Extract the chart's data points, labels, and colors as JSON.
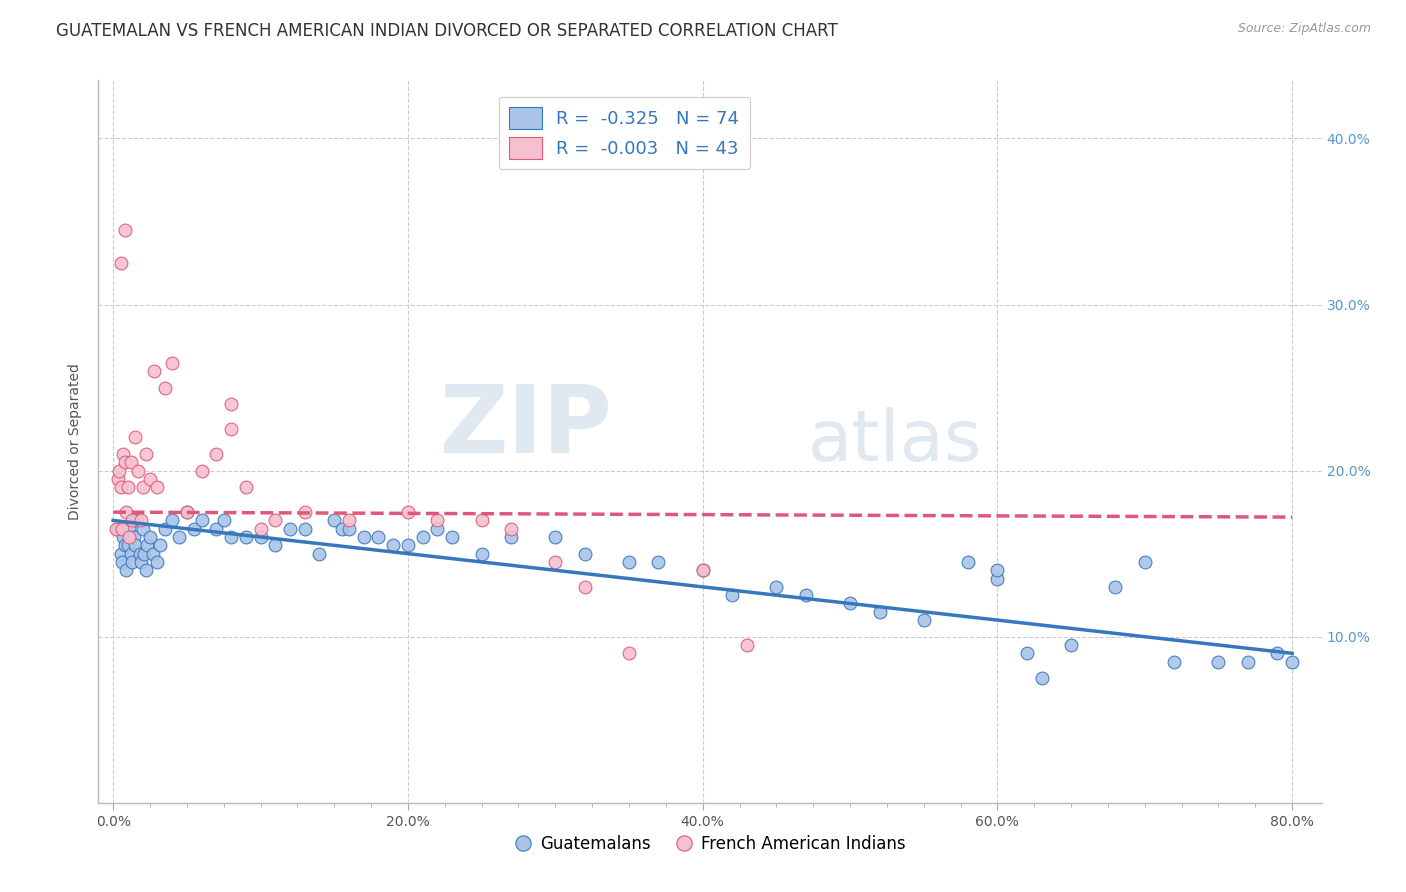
{
  "title": "GUATEMALAN VS FRENCH AMERICAN INDIAN DIVORCED OR SEPARATED CORRELATION CHART",
  "source": "Source: ZipAtlas.com",
  "ylabel": "Divorced or Separated",
  "x_tick_labels": [
    "0.0%",
    "",
    "",
    "",
    "",
    "",
    "",
    "",
    "20.0%",
    "",
    "",
    "",
    "",
    "",
    "",
    "",
    "40.0%",
    "",
    "",
    "",
    "",
    "",
    "",
    "",
    "60.0%",
    "",
    "",
    "",
    "",
    "",
    "",
    "",
    "80.0%"
  ],
  "x_tick_values": [
    0,
    2.5,
    5,
    7.5,
    10,
    12.5,
    15,
    17.5,
    20,
    22.5,
    25,
    27.5,
    30,
    32.5,
    35,
    37.5,
    40,
    42.5,
    45,
    47.5,
    50,
    52.5,
    55,
    57.5,
    60,
    62.5,
    65,
    67.5,
    70,
    72.5,
    75,
    77.5,
    80
  ],
  "x_major_ticks": [
    0,
    20,
    40,
    60,
    80
  ],
  "x_major_labels": [
    "0.0%",
    "20.0%",
    "40.0%",
    "60.0%",
    "80.0%"
  ],
  "y_tick_labels": [
    "10.0%",
    "20.0%",
    "30.0%",
    "40.0%"
  ],
  "y_tick_values": [
    10.0,
    20.0,
    30.0,
    40.0
  ],
  "xlim": [
    -1.0,
    82.0
  ],
  "ylim": [
    0.0,
    43.5
  ],
  "legend_labels": [
    "R =  -0.325   N = 74",
    "R =  -0.003   N = 43"
  ],
  "legend_series": [
    "Guatemalans",
    "French American Indians"
  ],
  "scatter_blue": {
    "x": [
      0.3,
      0.5,
      0.6,
      0.7,
      0.8,
      0.9,
      1.0,
      1.1,
      1.2,
      1.3,
      1.4,
      1.5,
      1.6,
      1.8,
      1.9,
      2.0,
      2.1,
      2.2,
      2.3,
      2.5,
      2.7,
      3.0,
      3.2,
      3.5,
      4.0,
      4.5,
      5.0,
      5.5,
      6.0,
      7.0,
      7.5,
      8.0,
      9.0,
      10.0,
      11.0,
      12.0,
      13.0,
      14.0,
      15.0,
      15.5,
      16.0,
      17.0,
      18.0,
      19.0,
      20.0,
      21.0,
      22.0,
      23.0,
      25.0,
      27.0,
      30.0,
      32.0,
      35.0,
      37.0,
      40.0,
      42.0,
      45.0,
      47.0,
      50.0,
      52.0,
      55.0,
      58.0,
      60.0,
      62.0,
      65.0,
      68.0,
      70.0,
      72.0,
      75.0,
      77.0,
      79.0,
      80.0,
      60.0,
      63.0
    ],
    "y": [
      16.5,
      15.0,
      14.5,
      16.0,
      15.5,
      14.0,
      15.5,
      16.5,
      15.0,
      14.5,
      16.0,
      15.5,
      17.0,
      15.0,
      14.5,
      16.5,
      15.0,
      14.0,
      15.5,
      16.0,
      15.0,
      14.5,
      15.5,
      16.5,
      17.0,
      16.0,
      17.5,
      16.5,
      17.0,
      16.5,
      17.0,
      16.0,
      16.0,
      16.0,
      15.5,
      16.5,
      16.5,
      15.0,
      17.0,
      16.5,
      16.5,
      16.0,
      16.0,
      15.5,
      15.5,
      16.0,
      16.5,
      16.0,
      15.0,
      16.0,
      16.0,
      15.0,
      14.5,
      14.5,
      14.0,
      12.5,
      13.0,
      12.5,
      12.0,
      11.5,
      11.0,
      14.5,
      13.5,
      9.0,
      9.5,
      13.0,
      14.5,
      8.5,
      8.5,
      8.5,
      9.0,
      8.5,
      14.0,
      7.5
    ],
    "color": "#aac4e8",
    "edge_color": "#3777bd",
    "trendline": {
      "x0": 0.0,
      "x1": 80.0,
      "y0": 17.0,
      "y1": 9.0
    }
  },
  "scatter_pink": {
    "x": [
      0.2,
      0.3,
      0.4,
      0.5,
      0.6,
      0.7,
      0.8,
      0.9,
      1.0,
      1.1,
      1.2,
      1.3,
      1.5,
      1.7,
      1.9,
      2.0,
      2.2,
      2.5,
      3.0,
      3.5,
      4.0,
      5.0,
      6.0,
      7.0,
      8.0,
      9.0,
      10.0,
      11.0,
      13.0,
      16.0,
      20.0,
      22.0,
      25.0,
      27.0,
      30.0,
      32.0,
      35.0,
      40.0,
      43.0,
      8.0,
      0.5,
      0.8,
      2.8
    ],
    "y": [
      16.5,
      19.5,
      20.0,
      19.0,
      16.5,
      21.0,
      20.5,
      17.5,
      19.0,
      16.0,
      20.5,
      17.0,
      22.0,
      20.0,
      17.0,
      19.0,
      21.0,
      19.5,
      19.0,
      25.0,
      26.5,
      17.5,
      20.0,
      21.0,
      22.5,
      19.0,
      16.5,
      17.0,
      17.5,
      17.0,
      17.5,
      17.0,
      17.0,
      16.5,
      14.5,
      13.0,
      9.0,
      14.0,
      9.5,
      24.0,
      32.5,
      34.5,
      26.0
    ],
    "color": "#f5c0cf",
    "edge_color": "#e05878",
    "trendline": {
      "x0": 0.0,
      "x1": 80.0,
      "y0": 17.5,
      "y1": 17.2
    }
  },
  "watermark_zip": "ZIP",
  "watermark_atlas": "atlas",
  "background_color": "#ffffff",
  "grid_color": "#cccccc",
  "title_fontsize": 12,
  "axis_label_fontsize": 10,
  "tick_fontsize": 10,
  "source_fontsize": 9,
  "scatter_size": 85,
  "scatter_linewidth": 0.8
}
